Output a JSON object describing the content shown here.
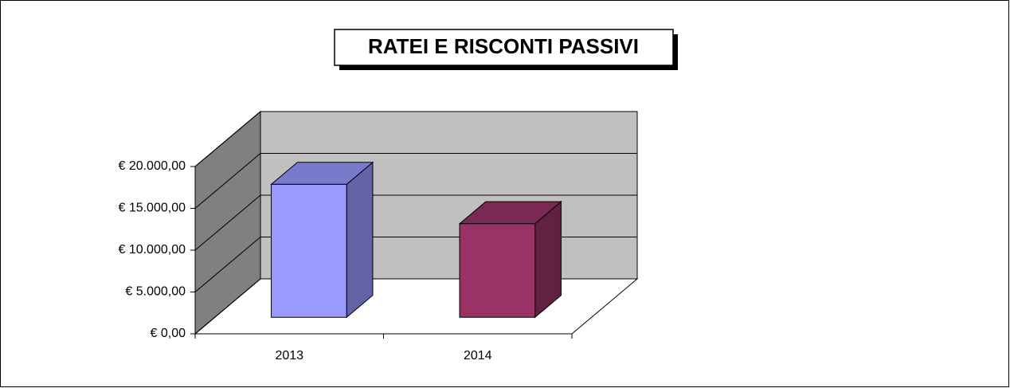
{
  "chart_data": {
    "type": "bar3d",
    "title": "RATEI E RISCONTI PASSIVI",
    "categories": [
      "2013",
      "2014"
    ],
    "values": [
      15900,
      11200
    ],
    "colors": [
      "#9999ff",
      "#993366"
    ],
    "ylim": [
      0,
      20000
    ],
    "yticks": [
      {
        "value": 0,
        "label": "€ 0,00"
      },
      {
        "value": 5000,
        "label": "€ 5.000,00"
      },
      {
        "value": 10000,
        "label": "€ 10.000,00"
      },
      {
        "value": 15000,
        "label": "€ 15.000,00"
      },
      {
        "value": 20000,
        "label": "€ 20.000,00"
      }
    ],
    "grid": true
  }
}
